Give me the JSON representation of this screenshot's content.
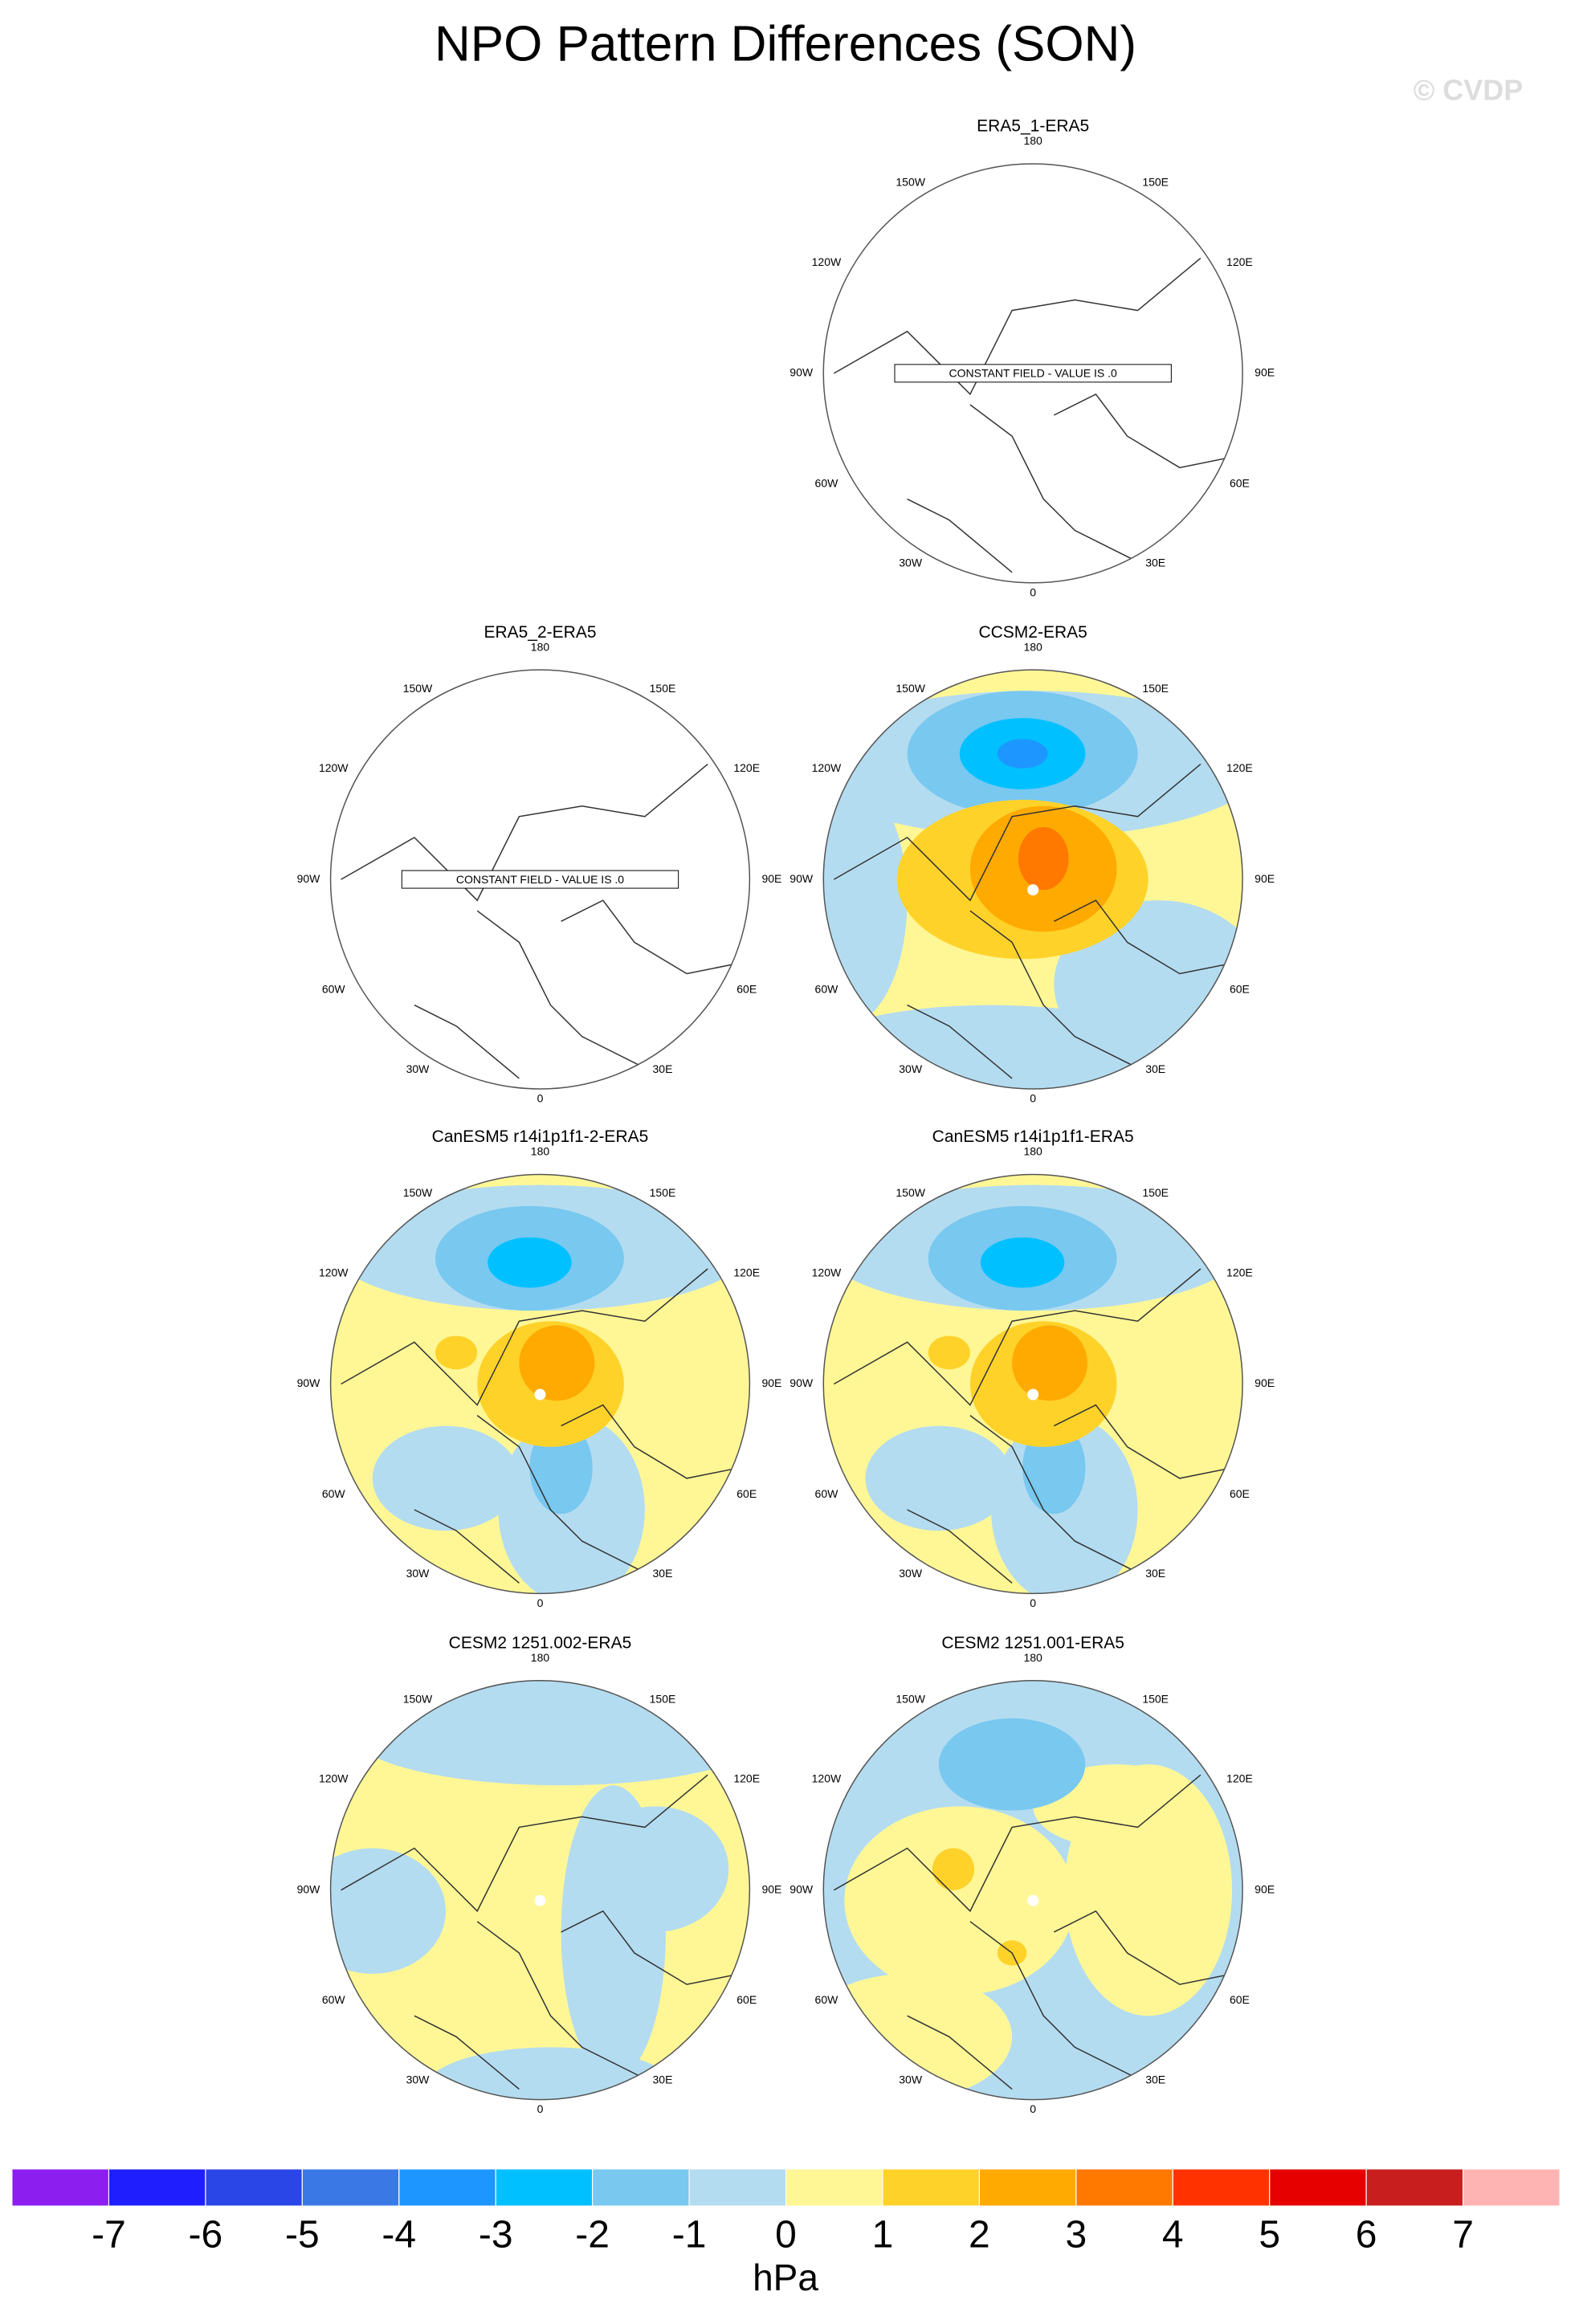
{
  "title": "NPO Pattern Differences (SON)",
  "watermark": "© CVDP",
  "panels": [
    {
      "title": "ERA5_1-ERA5",
      "note": "CONSTANT FIELD - VALUE IS .0"
    },
    {
      "title": "ERA5_2-ERA5",
      "note": "CONSTANT FIELD - VALUE IS .0"
    },
    {
      "title": "CCSM2-ERA5"
    },
    {
      "title": "CanESM5 r14i1p1f1-2-ERA5"
    },
    {
      "title": "CanESM5 r14i1p1f1-ERA5"
    },
    {
      "title": "CESM2 1251.002-ERA5"
    },
    {
      "title": "CESM2 1251.001-ERA5"
    }
  ],
  "longitude_labels": [
    "180",
    "150E",
    "120E",
    "90E",
    "60E",
    "30E",
    "0",
    "30W",
    "60W",
    "90W",
    "120W",
    "150W"
  ],
  "colorbar": {
    "colors": [
      "#8c1ef0",
      "#1e1eff",
      "#2a46e6",
      "#3a78e6",
      "#1e96ff",
      "#00c0ff",
      "#78c8f0",
      "#b4dcf0",
      "#fff796",
      "#ffd22a",
      "#ffaa00",
      "#ff7800",
      "#ff3200",
      "#e60000",
      "#c81e1e",
      "#ffb4b4"
    ],
    "ticks": [
      -7,
      -6,
      -5,
      -4,
      -3,
      -2,
      -1,
      0,
      1,
      2,
      3,
      4,
      5,
      6,
      7
    ],
    "label": "hPa"
  }
}
